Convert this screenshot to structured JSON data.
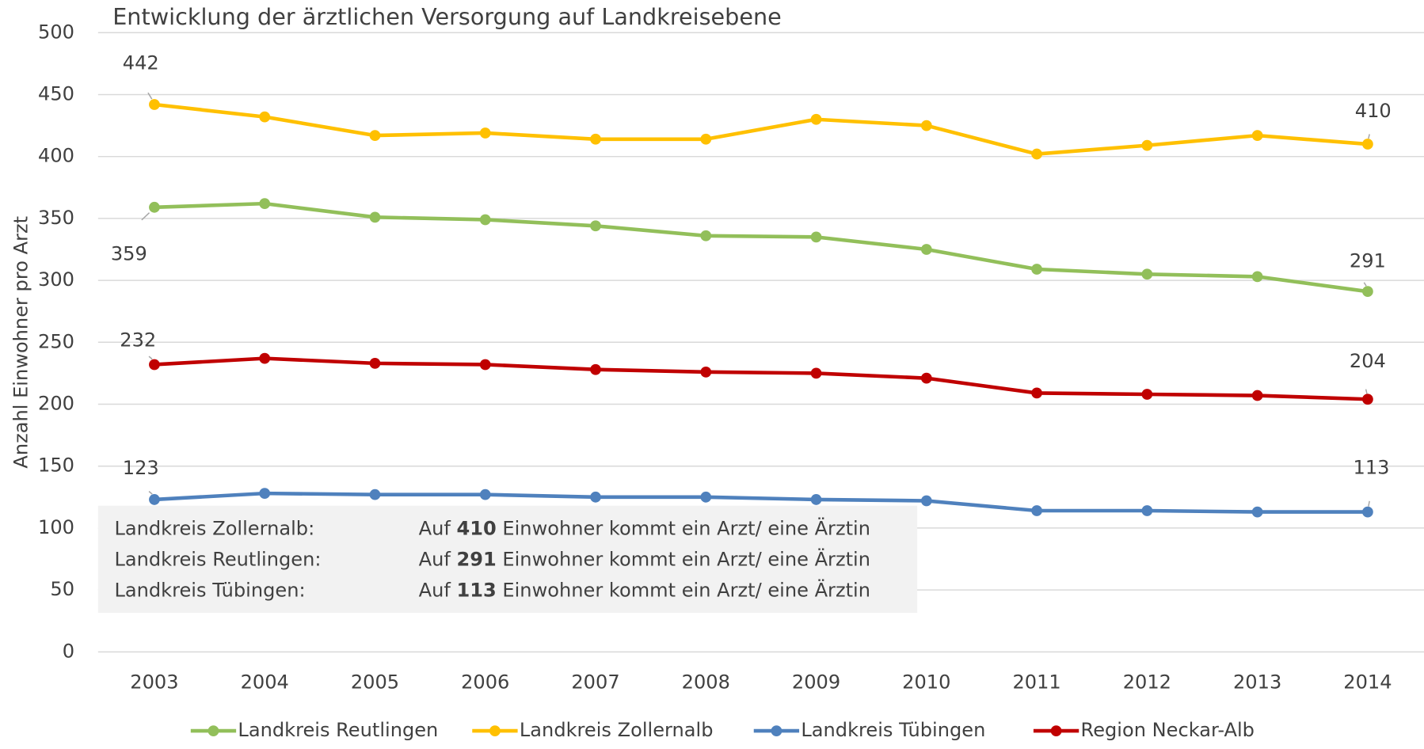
{
  "chart_data": {
    "type": "line",
    "title": "Entwicklung der ärztlichen Versorgung auf Landkreisebene",
    "y_label": "Anzahl Einwohner pro Arzt",
    "categories": [
      "2003",
      "2004",
      "2005",
      "2006",
      "2007",
      "2008",
      "2009",
      "2010",
      "2011",
      "2012",
      "2013",
      "2014"
    ],
    "series": [
      {
        "name": "Landkreis Reutlingen",
        "color": "#92bf5a",
        "values": [
          359,
          362,
          351,
          349,
          344,
          336,
          335,
          325,
          309,
          305,
          303,
          291
        ]
      },
      {
        "name": "Landkreis Zollernalb",
        "color": "#ffc000",
        "values": [
          442,
          432,
          417,
          419,
          414,
          414,
          430,
          425,
          402,
          409,
          417,
          410
        ]
      },
      {
        "name": "Landkreis Tübingen",
        "color": "#4f81bd",
        "values": [
          123,
          128,
          127,
          127,
          125,
          125,
          123,
          122,
          114,
          114,
          113,
          113
        ]
      },
      {
        "name": "Region Neckar-Alb",
        "color": "#c00000",
        "values": [
          232,
          237,
          233,
          232,
          228,
          226,
          225,
          221,
          209,
          208,
          207,
          204
        ]
      }
    ],
    "ylim": [
      0,
      500
    ],
    "yticks": [
      0,
      50,
      100,
      150,
      200,
      250,
      300,
      350,
      400,
      450,
      500
    ],
    "grid": true,
    "legend": "bottom",
    "info_box": [
      {
        "name": "Landkreis Zollernalb:",
        "prefix": "Auf",
        "suffix": "Einwohner kommt ein Arzt/ eine Ärztin"
      },
      {
        "name": "Landkreis Reutlingen:",
        "prefix": "Auf",
        "suffix": "Einwohner kommt ein Arzt/ eine Ärztin"
      },
      {
        "name": "Landkreis Tübingen:",
        "prefix": "Auf",
        "suffix": "Einwohner kommt ein Arzt/ eine Ärztin"
      }
    ]
  }
}
